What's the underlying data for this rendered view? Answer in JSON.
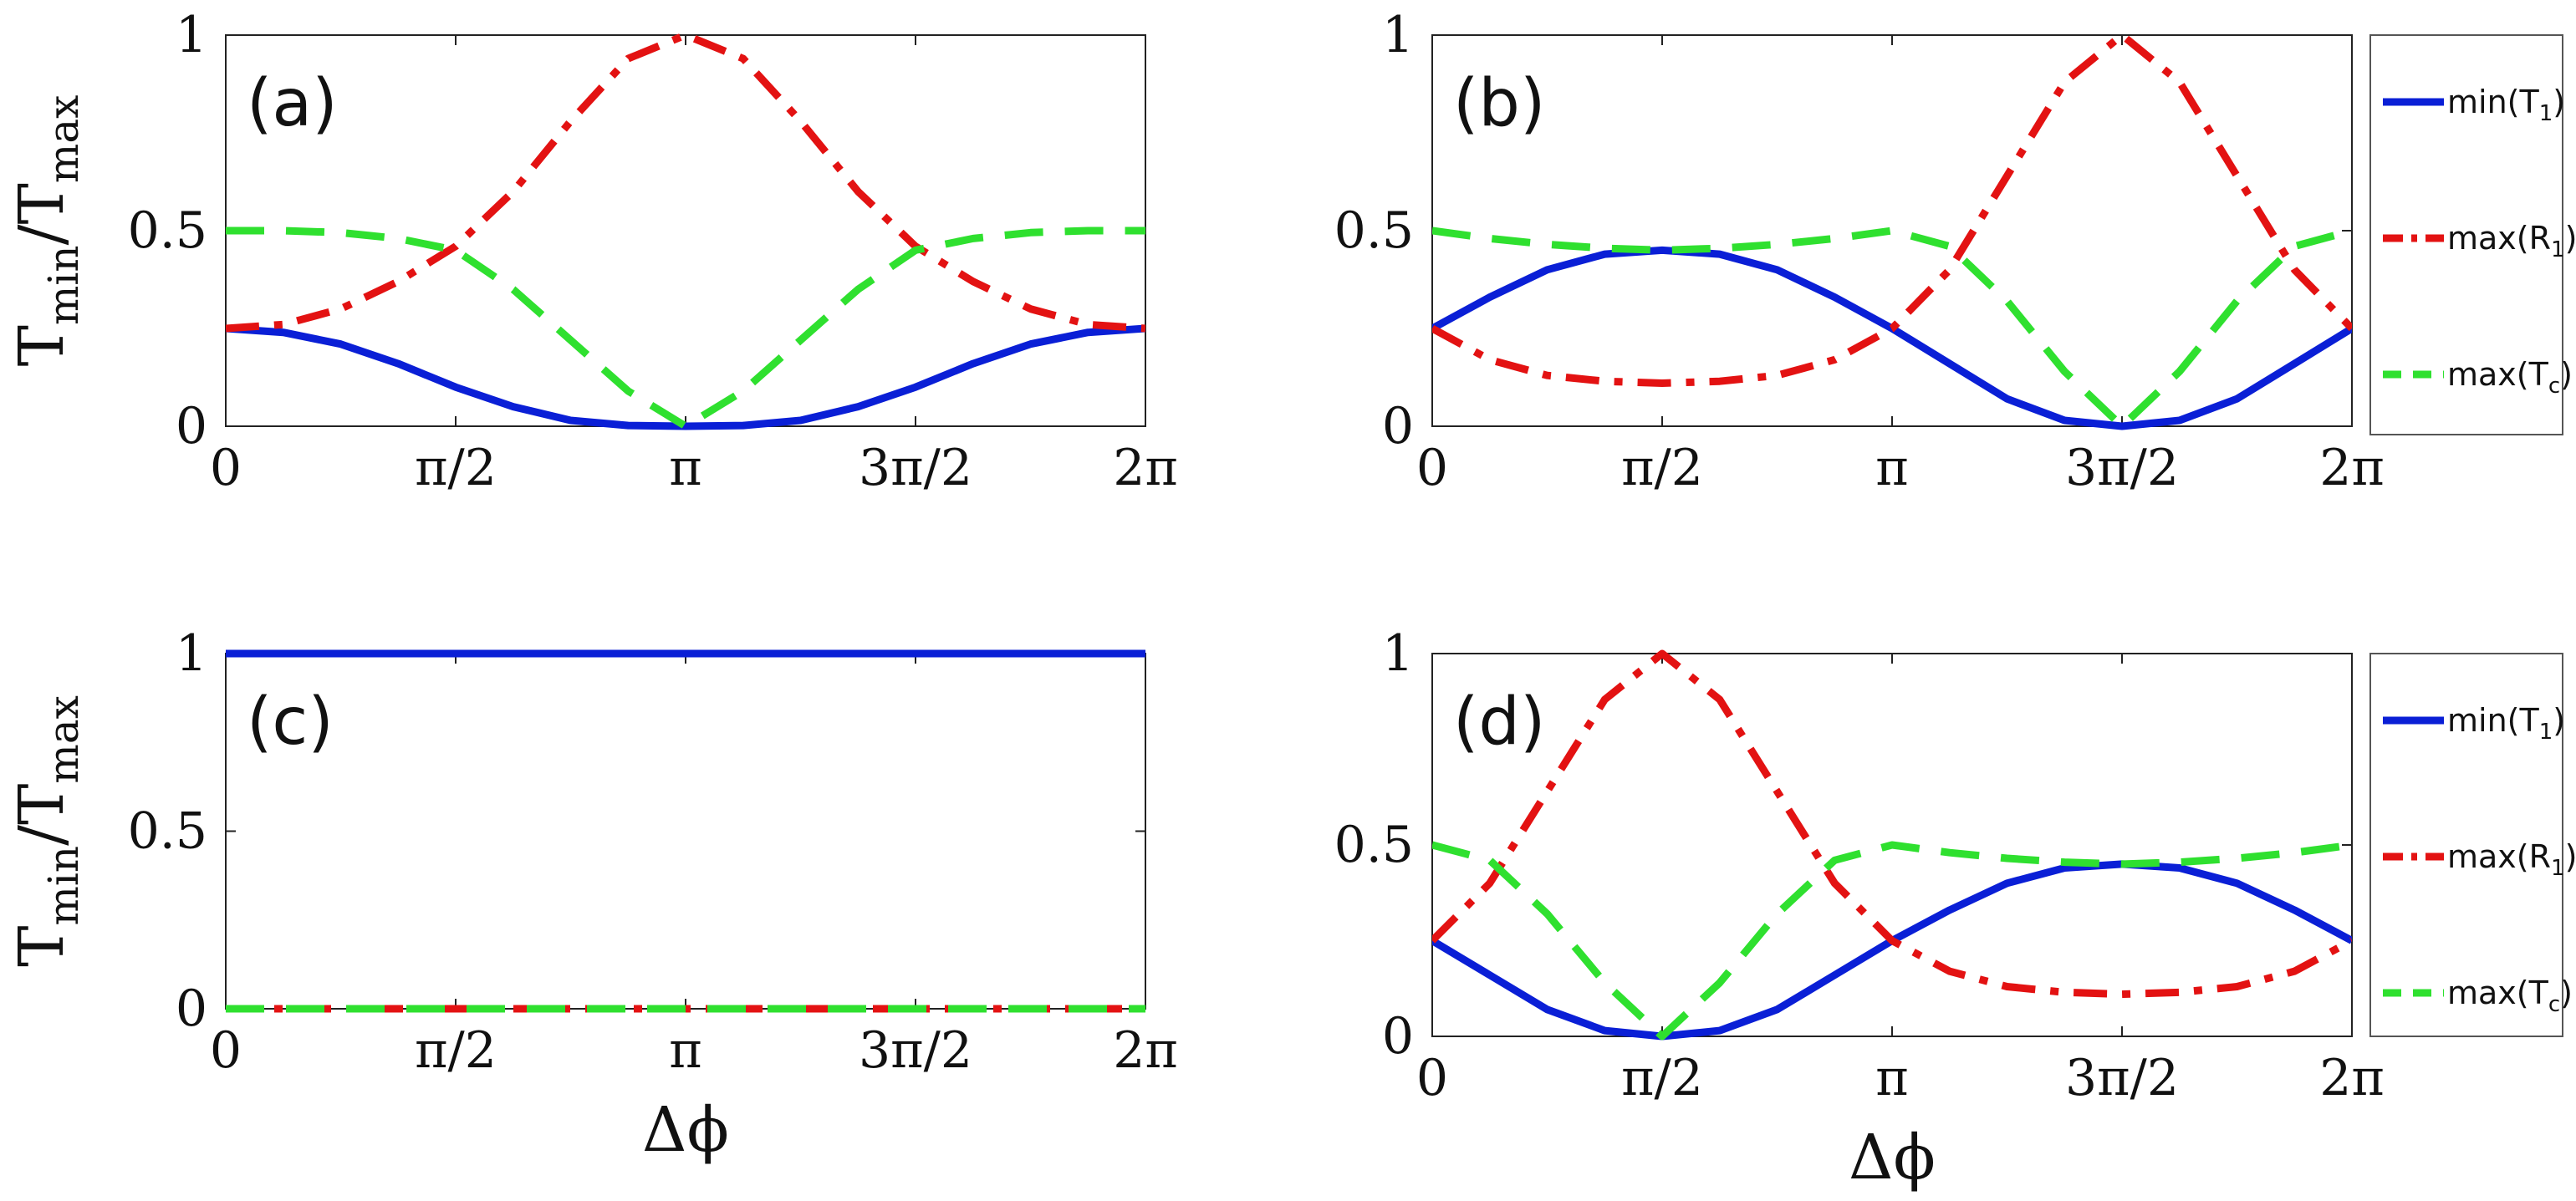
{
  "colors": {
    "blue": "#0a1fd6",
    "red": "#e31212",
    "green": "#2fe02f"
  },
  "legend_entries": [
    {
      "name": "min(T",
      "sub": "1",
      "close": ")",
      "style": "solid",
      "color": "#0a1fd6"
    },
    {
      "name": "max(R",
      "sub": "1",
      "close": ")",
      "style": "dashdot",
      "color": "#e31212"
    },
    {
      "name": "max(T",
      "sub": "c",
      "close": ")",
      "style": "dashed",
      "color": "#2fe02f"
    }
  ],
  "chart_data": [
    {
      "id": "a",
      "type": "line",
      "label": "(a)",
      "ylabel": {
        "main": "T",
        "sub1": "min",
        "sep": "/T",
        "sub2": "max"
      },
      "xlabel": "",
      "xlim": [
        0,
        6.283185
      ],
      "ylim": [
        0,
        1
      ],
      "xticks": [
        0,
        1.570796,
        3.141593,
        4.712389,
        6.283185
      ],
      "xticklabels": [
        "0",
        "π/2",
        "π",
        "3π/2",
        "2π"
      ],
      "yticks": [
        0,
        0.5,
        1
      ],
      "yticklabels": [
        "0",
        "0.5",
        "1"
      ],
      "legend": false,
      "series": [
        {
          "name": "min(T1)",
          "style": "solid",
          "color": "#0a1fd6",
          "x": [
            0,
            0.3927,
            0.7854,
            1.1781,
            1.5708,
            1.9635,
            2.3562,
            2.7489,
            3.1416,
            3.5343,
            3.927,
            4.3197,
            4.7124,
            5.1051,
            5.4978,
            5.8905,
            6.2832
          ],
          "y": [
            0.25,
            0.24,
            0.21,
            0.16,
            0.1,
            0.05,
            0.015,
            0.002,
            0,
            0.002,
            0.015,
            0.05,
            0.1,
            0.16,
            0.21,
            0.24,
            0.25
          ]
        },
        {
          "name": "max(R1)",
          "style": "dashdot",
          "color": "#e31212",
          "x": [
            0,
            0.3927,
            0.7854,
            1.1781,
            1.5708,
            1.9635,
            2.3562,
            2.7489,
            3.1416,
            3.5343,
            3.927,
            4.3197,
            4.7124,
            5.1051,
            5.4978,
            5.8905,
            6.2832
          ],
          "y": [
            0.25,
            0.26,
            0.3,
            0.37,
            0.46,
            0.6,
            0.78,
            0.94,
            1.0,
            0.94,
            0.78,
            0.6,
            0.46,
            0.37,
            0.3,
            0.26,
            0.25
          ]
        },
        {
          "name": "max(Tc)",
          "style": "dashed",
          "color": "#2fe02f",
          "x": [
            0,
            0.3927,
            0.7854,
            1.1781,
            1.5708,
            1.9635,
            2.3562,
            2.7489,
            3.1416,
            3.5343,
            3.927,
            4.3197,
            4.7124,
            5.1051,
            5.4978,
            5.8905,
            6.2832
          ],
          "y": [
            0.5,
            0.5,
            0.495,
            0.48,
            0.45,
            0.35,
            0.22,
            0.09,
            0,
            0.09,
            0.22,
            0.35,
            0.45,
            0.48,
            0.495,
            0.5,
            0.5
          ]
        }
      ]
    },
    {
      "id": "b",
      "type": "line",
      "label": "(b)",
      "xlabel": "",
      "xlim": [
        0,
        6.283185
      ],
      "ylim": [
        0,
        1
      ],
      "xticks": [
        0,
        1.570796,
        3.141593,
        4.712389,
        6.283185
      ],
      "xticklabels": [
        "0",
        "π/2",
        "π",
        "3π/2",
        "2π"
      ],
      "yticks": [
        0,
        0.5,
        1
      ],
      "yticklabels": [
        "0",
        "0.5",
        "1"
      ],
      "legend": true,
      "series": [
        {
          "name": "min(T1)",
          "style": "solid",
          "color": "#0a1fd6",
          "x": [
            0,
            0.3927,
            0.7854,
            1.1781,
            1.5708,
            1.9635,
            2.3562,
            2.7489,
            3.1416,
            3.5343,
            3.927,
            4.3197,
            4.7124,
            5.1051,
            5.4978,
            5.8905,
            6.2832
          ],
          "y": [
            0.25,
            0.33,
            0.4,
            0.44,
            0.45,
            0.44,
            0.4,
            0.33,
            0.25,
            0.16,
            0.07,
            0.015,
            0,
            0.015,
            0.07,
            0.16,
            0.25
          ]
        },
        {
          "name": "max(R1)",
          "style": "dashdot",
          "color": "#e31212",
          "x": [
            0,
            0.3927,
            0.7854,
            1.1781,
            1.5708,
            1.9635,
            2.3562,
            2.7489,
            3.1416,
            3.5343,
            3.927,
            4.3197,
            4.7124,
            5.1051,
            5.4978,
            5.8905,
            6.2832
          ],
          "y": [
            0.25,
            0.17,
            0.13,
            0.115,
            0.11,
            0.115,
            0.13,
            0.17,
            0.25,
            0.4,
            0.64,
            0.88,
            1.0,
            0.88,
            0.64,
            0.4,
            0.25
          ]
        },
        {
          "name": "max(Tc)",
          "style": "dashed",
          "color": "#2fe02f",
          "x": [
            0,
            0.3927,
            0.7854,
            1.1781,
            1.5708,
            1.9635,
            2.3562,
            2.7489,
            3.1416,
            3.5343,
            3.927,
            4.3197,
            4.7124,
            5.1051,
            5.4978,
            5.8905,
            6.2832
          ],
          "y": [
            0.5,
            0.48,
            0.465,
            0.455,
            0.45,
            0.455,
            0.465,
            0.48,
            0.5,
            0.46,
            0.32,
            0.14,
            0,
            0.14,
            0.32,
            0.46,
            0.5
          ]
        }
      ]
    },
    {
      "id": "c",
      "type": "line",
      "label": "(c)",
      "ylabel": {
        "main": "T",
        "sub1": "min",
        "sep": "/T",
        "sub2": "max"
      },
      "xlabel": "Δϕ",
      "xlim": [
        0,
        6.283185
      ],
      "ylim": [
        0,
        1
      ],
      "xticks": [
        0,
        1.570796,
        3.141593,
        4.712389,
        6.283185
      ],
      "xticklabels": [
        "0",
        "π/2",
        "π",
        "3π/2",
        "2π"
      ],
      "yticks": [
        0,
        0.5,
        1
      ],
      "yticklabels": [
        "0",
        "0.5",
        "1"
      ],
      "legend": false,
      "series": [
        {
          "name": "min(T1)",
          "style": "solid",
          "color": "#0a1fd6",
          "x": [
            0,
            6.2832
          ],
          "y": [
            1,
            1
          ]
        },
        {
          "name": "max(R1)",
          "style": "dashdot",
          "color": "#e31212",
          "x": [
            0,
            6.2832
          ],
          "y": [
            0,
            0
          ]
        },
        {
          "name": "max(Tc)",
          "style": "dashed",
          "color": "#2fe02f",
          "x": [
            0,
            6.2832
          ],
          "y": [
            0,
            0
          ]
        }
      ]
    },
    {
      "id": "d",
      "type": "line",
      "label": "(d)",
      "xlabel": "Δϕ",
      "xlim": [
        0,
        6.283185
      ],
      "ylim": [
        0,
        1
      ],
      "xticks": [
        0,
        1.570796,
        3.141593,
        4.712389,
        6.283185
      ],
      "xticklabels": [
        "0",
        "π/2",
        "π",
        "3π/2",
        "2π"
      ],
      "yticks": [
        0,
        0.5,
        1
      ],
      "yticklabels": [
        "0",
        "0.5",
        "1"
      ],
      "legend": true,
      "series": [
        {
          "name": "min(T1)",
          "style": "solid",
          "color": "#0a1fd6",
          "x": [
            0,
            0.3927,
            0.7854,
            1.1781,
            1.5708,
            1.9635,
            2.3562,
            2.7489,
            3.1416,
            3.5343,
            3.927,
            4.3197,
            4.7124,
            5.1051,
            5.4978,
            5.8905,
            6.2832
          ],
          "y": [
            0.25,
            0.16,
            0.07,
            0.015,
            0,
            0.015,
            0.07,
            0.16,
            0.25,
            0.33,
            0.4,
            0.44,
            0.45,
            0.44,
            0.4,
            0.33,
            0.25
          ]
        },
        {
          "name": "max(R1)",
          "style": "dashdot",
          "color": "#e31212",
          "x": [
            0,
            0.3927,
            0.7854,
            1.1781,
            1.5708,
            1.9635,
            2.3562,
            2.7489,
            3.1416,
            3.5343,
            3.927,
            4.3197,
            4.7124,
            5.1051,
            5.4978,
            5.8905,
            6.2832
          ],
          "y": [
            0.25,
            0.4,
            0.64,
            0.88,
            1.0,
            0.88,
            0.64,
            0.4,
            0.25,
            0.17,
            0.13,
            0.115,
            0.11,
            0.115,
            0.13,
            0.17,
            0.25
          ]
        },
        {
          "name": "max(Tc)",
          "style": "dashed",
          "color": "#2fe02f",
          "x": [
            0,
            0.3927,
            0.7854,
            1.1781,
            1.5708,
            1.9635,
            2.3562,
            2.7489,
            3.1416,
            3.5343,
            3.927,
            4.3197,
            4.7124,
            5.1051,
            5.4978,
            5.8905,
            6.2832
          ],
          "y": [
            0.5,
            0.46,
            0.32,
            0.14,
            0,
            0.14,
            0.32,
            0.46,
            0.5,
            0.48,
            0.465,
            0.455,
            0.45,
            0.455,
            0.465,
            0.48,
            0.5
          ]
        }
      ]
    }
  ]
}
